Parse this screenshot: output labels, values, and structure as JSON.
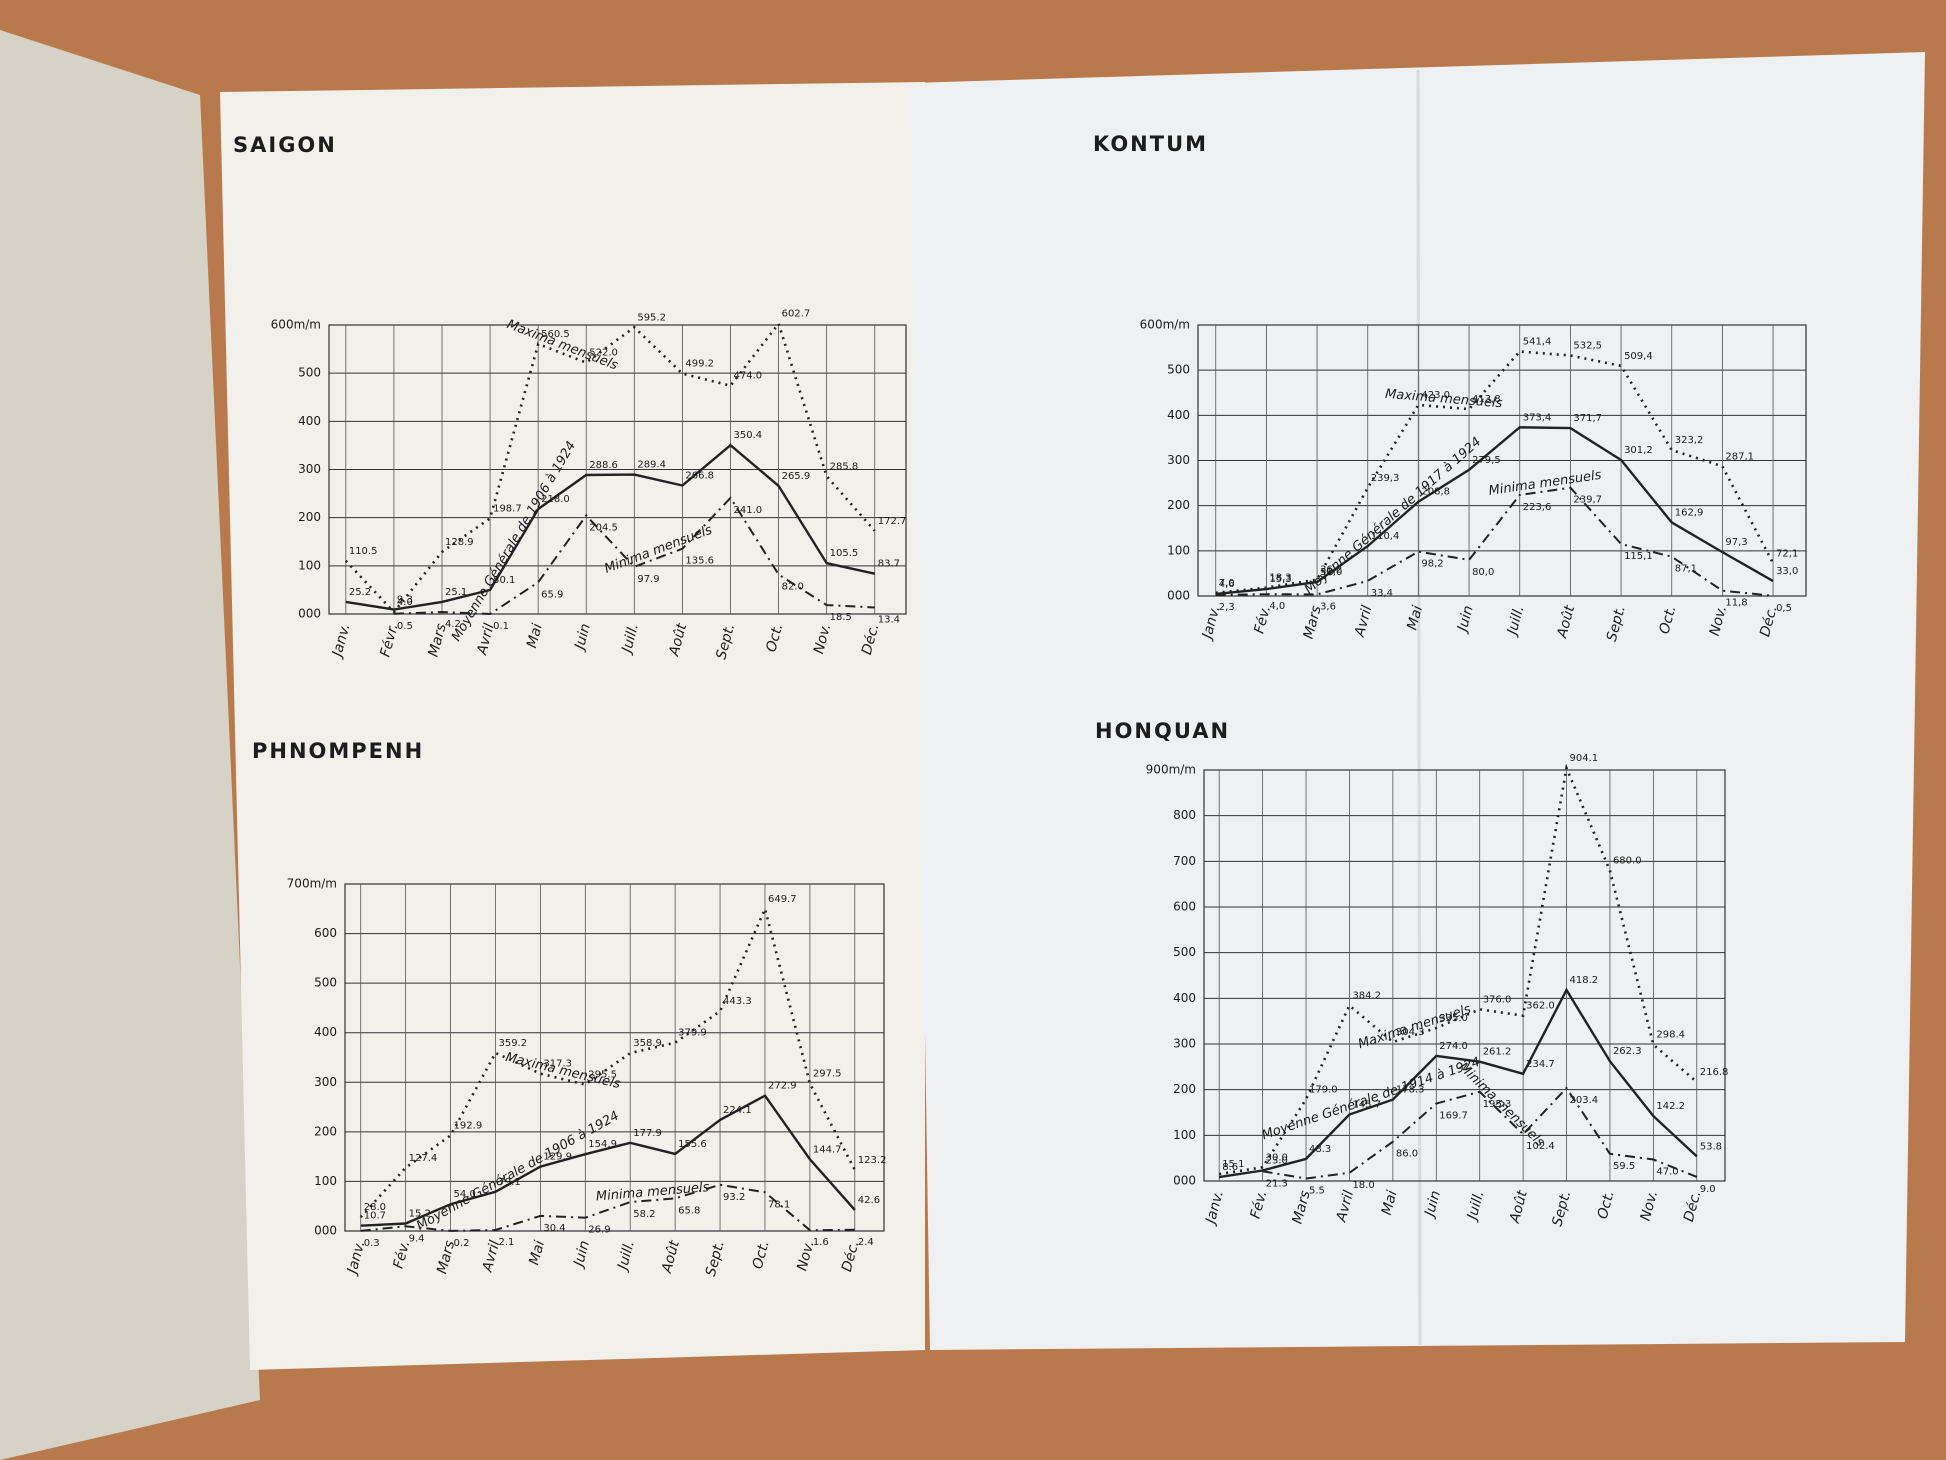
{
  "chart_data": [
    {
      "type": "line",
      "title": "SAIGON",
      "categories": [
        "Janv.",
        "Févr.",
        "Mars",
        "Avril",
        "Mai",
        "Juin",
        "Juill.",
        "Août",
        "Sept.",
        "Oct.",
        "Nov.",
        "Déc."
      ],
      "ylim": [
        0,
        600
      ],
      "yticks": [
        {
          "value": 0,
          "label": "000"
        },
        100,
        200,
        300,
        400,
        500,
        {
          "value": 600,
          "label": "600m/m"
        }
      ],
      "series": [
        {
          "name": "Maxima mensuels",
          "color": "#222",
          "style": "dotted",
          "values": [
            110.5,
            4.0,
            128.9,
            198.7,
            560.5,
            522.0,
            595.2,
            499.2,
            474.0,
            602.7,
            285.8,
            172.7
          ],
          "value_labels": [
            "110.5",
            "4.0",
            "128.9",
            "198.7",
            "560.5",
            "522.0",
            "595.2",
            "499.2",
            "474.0",
            "602.7",
            "285.8",
            "172.7"
          ]
        },
        {
          "name": "Moyenne Générale de 1906 à 1924",
          "color": "#222",
          "style": "solid",
          "values": [
            25.2,
            9.3,
            25.1,
            50.1,
            218.0,
            288.6,
            289.4,
            266.8,
            350.4,
            265.9,
            105.5,
            83.7
          ],
          "value_labels": [
            "25.2",
            "9.3",
            "25.1",
            "50.1",
            "218.0",
            "288.6",
            "289.4",
            "266.8",
            "350.4",
            "265.9",
            "105.5",
            "83.7"
          ]
        },
        {
          "name": "Minima mensuels",
          "color": "#222",
          "style": "dashdot",
          "values": [
            null,
            0.5,
            4.2,
            0.1,
            65.9,
            204.5,
            97.9,
            135.6,
            241.0,
            82.0,
            18.5,
            13.4
          ],
          "value_labels": [
            null,
            "0.5",
            "4.2",
            "0.1",
            "65.9",
            "204.5",
            "97.9",
            "135.6",
            "241.0",
            "82.0",
            "18.5",
            "13.4"
          ]
        }
      ]
    },
    {
      "type": "line",
      "title": "KONTUM",
      "categories": [
        "Janv.",
        "Fév.",
        "Mars",
        "Avril",
        "Mai",
        "Juin",
        "Juill.",
        "Août",
        "Sept.",
        "Oct.",
        "Nov.",
        "Déc."
      ],
      "ylim": [
        0,
        600
      ],
      "yticks": [
        {
          "value": 0,
          "label": "000"
        },
        100,
        200,
        300,
        400,
        500,
        {
          "value": 600,
          "label": "600m/m"
        }
      ],
      "series": [
        {
          "name": "Maxima mensuels",
          "color": "#222",
          "style": "dotted",
          "values": [
            7.0,
            18.3,
            36.2,
            239.3,
            423.0,
            413.8,
            541.4,
            532.5,
            509.4,
            323.2,
            287.1,
            72.1
          ],
          "value_labels": [
            "7,0",
            "18,3",
            "36,2",
            "239,3",
            "423,0",
            "413,8",
            "541,4",
            "532,5",
            "509,4",
            "323,2",
            "287,1",
            "72,1"
          ]
        },
        {
          "name": "Moyenne Générale de 1917 à 1924",
          "color": "#222",
          "style": "solid",
          "values": [
            4.6,
            15.3,
            31.0,
            110.4,
            208.8,
            279.5,
            373.4,
            371.7,
            301.2,
            162.9,
            97.3,
            33.0
          ],
          "value_labels": [
            "4,6",
            "15,3",
            "31,0",
            "110,4",
            "208,8",
            "279,5",
            "373,4",
            "371,7",
            "301,2",
            "162,9",
            "97,3",
            "33,0"
          ]
        },
        {
          "name": "Minima mensuels",
          "color": "#222",
          "style": "dashdot",
          "values": [
            2.3,
            4.0,
            3.6,
            33.4,
            98.2,
            80.0,
            223.6,
            239.7,
            115.1,
            87.1,
            11.8,
            0.5
          ],
          "value_labels": [
            "2,3",
            "4,0",
            "3,6",
            "33,4",
            "98,2",
            "80,0",
            "223,6",
            "239,7",
            "115,1",
            "87,1",
            "11,8",
            "0,5"
          ]
        }
      ]
    },
    {
      "type": "line",
      "title": "PHNOMPENH",
      "categories": [
        "Janv.",
        "Fév.",
        "Mars",
        "Avril",
        "Mai",
        "Juin",
        "Juill.",
        "Août",
        "Sept.",
        "Oct.",
        "Nov.",
        "Déc."
      ],
      "ylim": [
        0,
        700
      ],
      "yticks": [
        {
          "value": 0,
          "label": "000"
        },
        100,
        200,
        300,
        400,
        500,
        600,
        {
          "value": 700,
          "label": "700m/m"
        }
      ],
      "series": [
        {
          "name": "Maxima mensuels",
          "color": "#222",
          "style": "dotted",
          "values": [
            28.0,
            127.4,
            192.9,
            359.2,
            317.3,
            295.5,
            358.9,
            379.9,
            443.3,
            649.7,
            297.5,
            123.2
          ],
          "value_labels": [
            "28.0",
            "127.4",
            "192.9",
            "359.2",
            "317.3",
            "295.5",
            "358.9",
            "379.9",
            "443.3",
            "649.7",
            "297.5",
            "123.2"
          ]
        },
        {
          "name": "Moyenne Générale de 1906 à 1924",
          "color": "#222",
          "style": "solid",
          "values": [
            10.7,
            15.2,
            54.0,
            79.1,
            129.9,
            154.9,
            177.9,
            155.6,
            224.1,
            272.9,
            144.7,
            42.6
          ],
          "value_labels": [
            "10.7",
            "15.2",
            "54.0",
            "79.1",
            "129.9",
            "154.9",
            "177.9",
            "155.6",
            "224.1",
            "272.9",
            "144.7",
            "42.6"
          ]
        },
        {
          "name": "Minima mensuels",
          "color": "#222",
          "style": "dashdot",
          "values": [
            0.3,
            9.4,
            0.2,
            2.1,
            30.4,
            26.9,
            58.2,
            65.8,
            93.2,
            78.1,
            1.6,
            2.4
          ],
          "value_labels": [
            "0.3",
            "9.4",
            "0.2",
            "2.1",
            "30.4",
            "26.9",
            "58.2",
            "65.8",
            "93.2",
            "78.1",
            "1.6",
            "2.4"
          ]
        }
      ]
    },
    {
      "type": "line",
      "title": "HONQUAN",
      "categories": [
        "Janv.",
        "Fév.",
        "Mars",
        "Avril",
        "Mai",
        "Juin",
        "Juill.",
        "Août",
        "Sept.",
        "Oct.",
        "Nov.",
        "Déc."
      ],
      "ylim": [
        0,
        900
      ],
      "yticks": [
        {
          "value": 0,
          "label": "000"
        },
        100,
        200,
        300,
        400,
        500,
        600,
        700,
        800,
        {
          "value": 900,
          "label": "900m/m"
        }
      ],
      "series": [
        {
          "name": "Maxima mensuels",
          "color": "#222",
          "style": "dotted",
          "values": [
            15.1,
            30.0,
            179.0,
            384.2,
            304.3,
            335.0,
            376.0,
            362.0,
            904.1,
            680.0,
            298.4,
            216.8
          ],
          "value_labels": [
            "15.1",
            "30.0",
            "179.0",
            "384.2",
            "304.3",
            "335.0",
            "376.0",
            "362.0",
            "904.1",
            "680.0",
            "298.4",
            "216.8"
          ]
        },
        {
          "name": "Moyenne Générale de 1914 à 1924",
          "color": "#222",
          "style": "solid",
          "values": [
            8.6,
            23.0,
            48.3,
            145.7,
            178.3,
            274.0,
            261.2,
            234.7,
            418.2,
            262.3,
            142.2,
            53.8
          ],
          "value_labels": [
            "8.6",
            "23.0",
            "48.3",
            "145.7",
            "178.3",
            "274.0",
            "261.2",
            "234.7",
            "418.2",
            "262.3",
            "142.2",
            "53.8"
          ]
        },
        {
          "name": "Minima mensuels",
          "color": "#222",
          "style": "dashdot",
          "values": [
            null,
            21.3,
            5.5,
            18.0,
            86.0,
            169.7,
            195.3,
            102.4,
            203.4,
            59.5,
            47.0,
            9.0
          ],
          "value_labels": [
            null,
            "21.3",
            "5.5",
            "18.0",
            "86.0",
            "169.7",
            "195.3",
            "102.4",
            "203.4",
            "59.5",
            "47.0",
            "9.0"
          ]
        }
      ]
    }
  ]
}
